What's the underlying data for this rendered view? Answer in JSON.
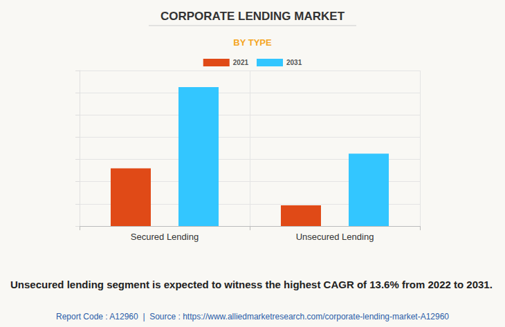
{
  "chart_data": {
    "type": "bar",
    "title": "CORPORATE LENDING MARKET",
    "subtitle": "BY TYPE",
    "categories": [
      "Secured Lending",
      "Unsecured Lending"
    ],
    "series": [
      {
        "name": "2021",
        "color": "#e04a17",
        "values": [
          2.6,
          0.93
        ]
      },
      {
        "name": "2031",
        "color": "#33c6ff",
        "values": [
          6.25,
          3.26
        ]
      }
    ],
    "ylim": [
      0,
      7
    ],
    "yticks": [
      0,
      1,
      2,
      3,
      4,
      5,
      6,
      7
    ],
    "grid": true,
    "tick_labels": "x",
    "legend": "top",
    "annotation": "Unsecured lending segment is expected to witness the highest CAGR of 13.6% from 2022 to 2031.",
    "footnote": "Report Code : A12960  |  Source : https://www.alliedmarketresearch.com/corporate-lending-market-A12960"
  }
}
